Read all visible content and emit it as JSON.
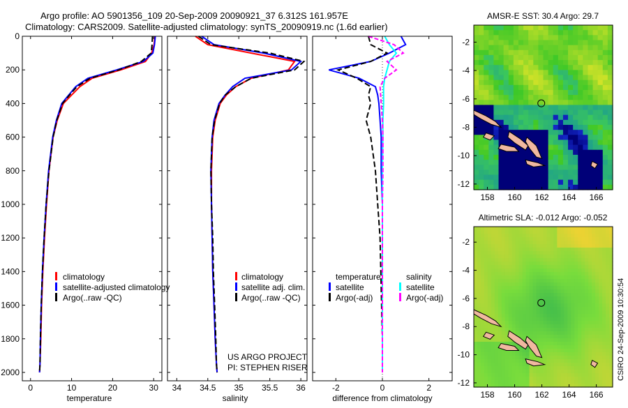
{
  "header": {
    "line1": "Argo profile: AO 5901356_109 20-Sep-2009 20090921_37 6.312S 161.957E",
    "line2": "Climatology: CARS2009. Satellite-adjusted climatology: synTS_20090919.nc (1.6d earlier)"
  },
  "side_label": "CSIRO 24-Sep-2009 10:30:54",
  "colors": {
    "climatology": "#ff0000",
    "satellite": "#0000ff",
    "argo": "#000000",
    "sal_satellite": "#00ffff",
    "sal_argo": "#ff00ff",
    "land": "#f0b8a0"
  },
  "panels": {
    "temp": {
      "xlabel": "temperature",
      "xticks": [
        "0",
        "10",
        "20",
        "30"
      ],
      "legend": [
        "climatology",
        "satellite-adjusted climatology",
        "Argo(..raw -QC)"
      ]
    },
    "sal": {
      "xlabel": "salinity",
      "xticks": [
        "34",
        "34.5",
        "35",
        "35.5",
        "36"
      ],
      "legend": [
        "climatology",
        "satellite adj. clim.",
        "Argo(..raw -QC)"
      ],
      "credit1": "US ARGO PROJECT",
      "credit2": "PI: STEPHEN RISER"
    },
    "diff": {
      "xlabel": "difference from climatology",
      "xticks": [
        "-2",
        "0",
        "2"
      ],
      "legend_temp_title": "temperature",
      "legend_temp": [
        "satellite",
        "Argo(-adj)"
      ],
      "legend_sal_title": "salinity",
      "legend_sal": [
        "satellite",
        "Argo(-adj)"
      ]
    },
    "yticks": [
      "0",
      "200",
      "400",
      "600",
      "800",
      "1000",
      "1200",
      "1400",
      "1600",
      "1800",
      "2000"
    ]
  },
  "maps": {
    "sst": {
      "title": "AMSR-E SST: 30.4 Argo: 29.7",
      "yticks": [
        "-2",
        "-4",
        "-6",
        "-8",
        "-10",
        "-12"
      ],
      "xticks": [
        "158",
        "160",
        "162",
        "164",
        "166"
      ]
    },
    "sla": {
      "title": "Altimetric SLA: -0.012 Argo: -0.052",
      "yticks": [
        "-2",
        "-4",
        "-6",
        "-8",
        "-10",
        "-12"
      ],
      "xticks": [
        "158",
        "160",
        "162",
        "164",
        "166"
      ]
    }
  },
  "chart_data": [
    {
      "type": "line",
      "xlabel": "temperature",
      "ylabel": "",
      "xlim": [
        -2,
        32
      ],
      "ylim": [
        2050,
        0
      ],
      "series": [
        {
          "name": "climatology",
          "x": [
            30.3,
            30.1,
            29.5,
            28,
            22,
            15,
            12,
            10,
            8,
            6.5,
            5.5,
            4.5,
            3.9,
            3.4,
            3.0,
            2.7,
            2.5,
            2.3,
            2.2
          ],
          "y": [
            0,
            50,
            100,
            150,
            200,
            250,
            300,
            350,
            400,
            500,
            600,
            800,
            1000,
            1200,
            1400,
            1600,
            1800,
            1950,
            2000
          ]
        },
        {
          "name": "satellite-adjusted climatology",
          "x": [
            30.4,
            30.2,
            29.8,
            27.5,
            21,
            14,
            11,
            9.3,
            7.6,
            6.3,
            5.4,
            4.4,
            3.8,
            3.3,
            2.9,
            2.6,
            2.4,
            2.3,
            2.2
          ],
          "y": [
            0,
            50,
            100,
            150,
            200,
            250,
            300,
            350,
            400,
            500,
            600,
            800,
            1000,
            1200,
            1400,
            1600,
            1800,
            1950,
            2000
          ]
        },
        {
          "name": "Argo(..raw -QC)",
          "x": [
            29.7,
            29.6,
            29.4,
            27,
            21.5,
            14.5,
            11.3,
            9.5,
            7.8,
            6.4,
            5.5,
            4.5,
            3.8,
            3.3,
            2.9,
            2.6,
            2.4,
            2.3,
            2.2
          ],
          "y": [
            0,
            50,
            100,
            150,
            200,
            250,
            300,
            350,
            400,
            500,
            600,
            800,
            1000,
            1200,
            1400,
            1600,
            1800,
            1950,
            2000
          ]
        }
      ]
    },
    {
      "type": "line",
      "xlabel": "salinity",
      "ylabel": "",
      "xlim": [
        33.85,
        36.1
      ],
      "ylim": [
        2050,
        0
      ],
      "series": [
        {
          "name": "climatology",
          "x": [
            34.3,
            34.5,
            35.2,
            35.9,
            35.8,
            35.2,
            34.95,
            34.8,
            34.7,
            34.62,
            34.58,
            34.56,
            34.56,
            34.57,
            34.58,
            34.6,
            34.62,
            34.64,
            34.65
          ],
          "y": [
            0,
            50,
            100,
            150,
            200,
            250,
            300,
            350,
            400,
            500,
            600,
            800,
            1000,
            1200,
            1400,
            1600,
            1800,
            1950,
            2000
          ]
        },
        {
          "name": "satellite adj. clim.",
          "x": [
            34.4,
            34.6,
            35.4,
            36.0,
            35.85,
            35.1,
            34.9,
            34.78,
            34.68,
            34.6,
            34.57,
            34.55,
            34.56,
            34.57,
            34.58,
            34.6,
            34.62,
            34.64,
            34.65
          ],
          "y": [
            0,
            50,
            100,
            150,
            200,
            250,
            300,
            350,
            400,
            500,
            600,
            800,
            1000,
            1200,
            1400,
            1600,
            1800,
            1950,
            2000
          ]
        },
        {
          "name": "Argo(..raw -QC)",
          "x": [
            34.35,
            34.55,
            35.5,
            36.05,
            35.9,
            35.2,
            34.95,
            34.78,
            34.69,
            34.61,
            34.57,
            34.55,
            34.56,
            34.58,
            34.59,
            34.61,
            34.63,
            34.64,
            34.65
          ],
          "y": [
            0,
            50,
            100,
            150,
            200,
            250,
            300,
            350,
            400,
            500,
            600,
            800,
            1000,
            1200,
            1400,
            1600,
            1800,
            1950,
            2000
          ]
        }
      ]
    },
    {
      "type": "line",
      "xlabel": "difference from climatology",
      "ylabel": "",
      "xlim": [
        -3,
        3
      ],
      "ylim": [
        2050,
        0
      ],
      "series": [
        {
          "name": "temperature satellite",
          "x": [
            0.8,
            1.0,
            0.3,
            -0.5,
            -2.3,
            -1.0,
            -0.3,
            -0.2,
            -0.15,
            -0.1,
            -0.05,
            -0.05,
            0,
            0,
            0,
            0,
            0
          ],
          "y": [
            0,
            50,
            100,
            150,
            200,
            250,
            300,
            350,
            400,
            500,
            600,
            800,
            1000,
            1200,
            1500,
            1800,
            2000
          ]
        },
        {
          "name": "temperature Argo(-adj)",
          "x": [
            -0.6,
            -0.5,
            0.2,
            -0.5,
            -1.9,
            -1.1,
            -0.5,
            -0.6,
            -0.5,
            -0.7,
            -0.5,
            -0.3,
            -0.2,
            -0.1,
            -0.05,
            0,
            0
          ],
          "y": [
            0,
            50,
            100,
            150,
            200,
            250,
            300,
            350,
            400,
            500,
            600,
            800,
            1000,
            1200,
            1500,
            1800,
            2000
          ]
        },
        {
          "name": "salinity satellite",
          "x": [
            0.1,
            0.3,
            0.6,
            0.3,
            0.2,
            0.1,
            0.05,
            0.05,
            0.02,
            0.02,
            0,
            0,
            0,
            0,
            0,
            0
          ],
          "y": [
            0,
            50,
            100,
            150,
            200,
            250,
            300,
            400,
            500,
            600,
            800,
            1000,
            1200,
            1500,
            1800,
            2000
          ]
        },
        {
          "name": "salinity Argo(-adj)",
          "x": [
            -0.6,
            0.5,
            0.9,
            0.2,
            0.6,
            0.1,
            -0.1,
            -0.05,
            0,
            0.02,
            0.02,
            0,
            0,
            0,
            0,
            0
          ],
          "y": [
            0,
            50,
            100,
            150,
            200,
            250,
            300,
            400,
            500,
            600,
            800,
            1000,
            1200,
            1500,
            1800,
            2000
          ]
        }
      ]
    }
  ]
}
